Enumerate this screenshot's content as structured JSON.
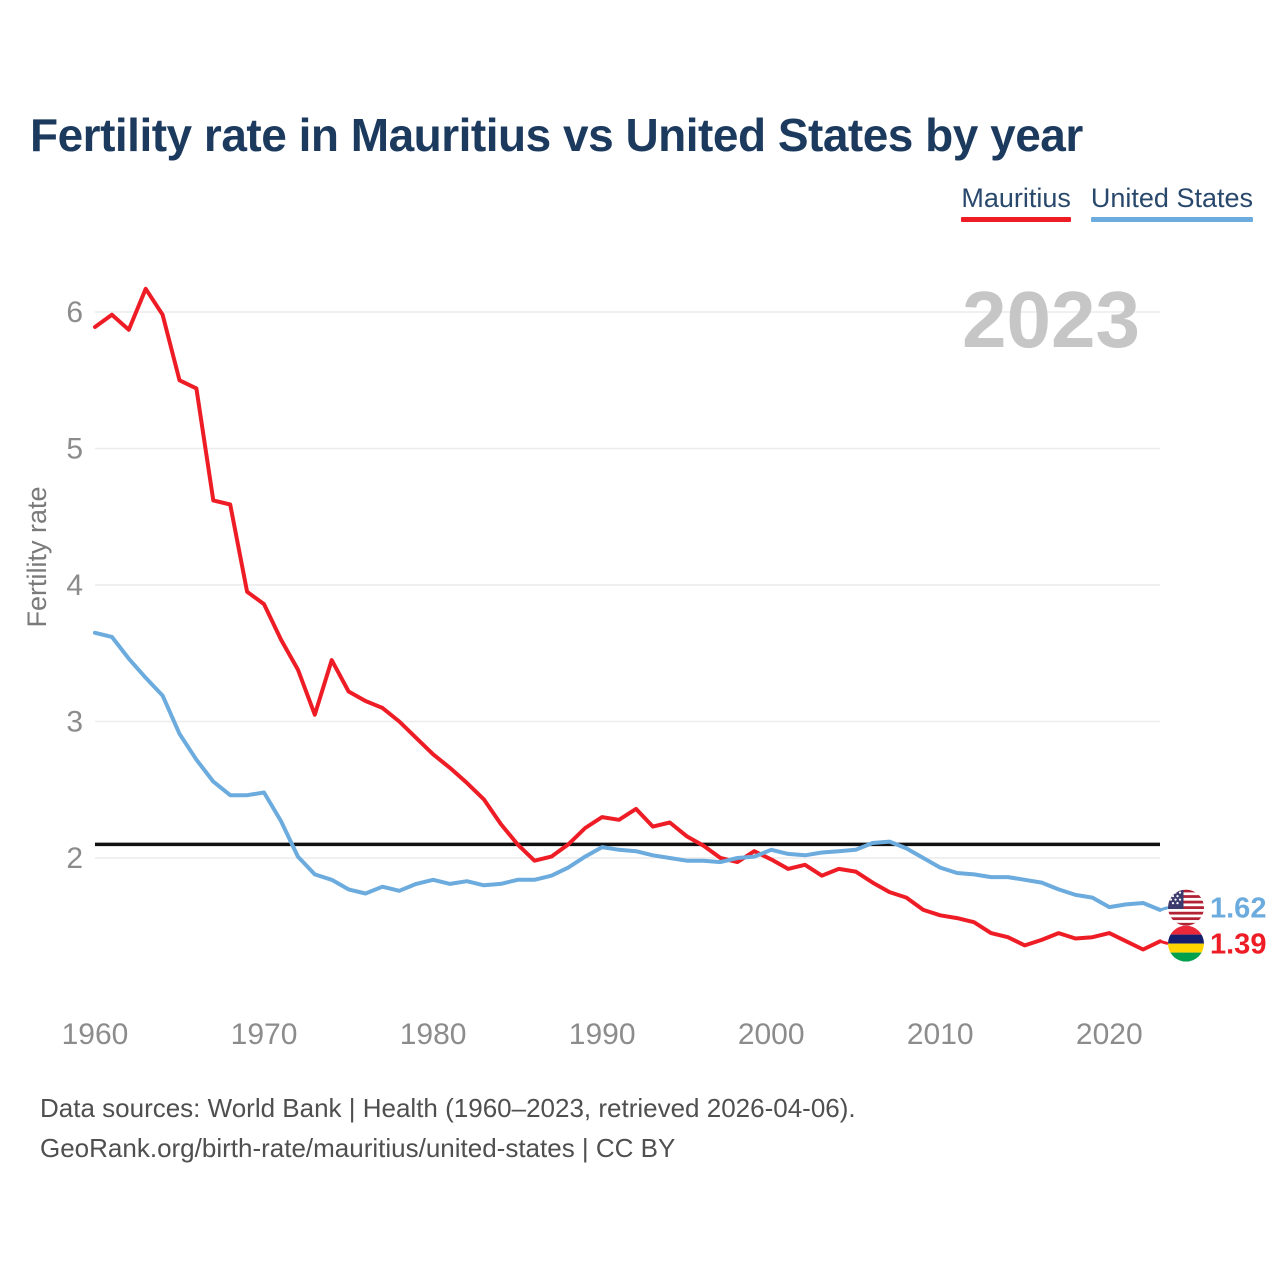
{
  "header": {
    "title": "Fertility rate in Mauritius vs United States by year"
  },
  "legend": [
    {
      "label": "Mauritius",
      "color": "#ee1c25"
    },
    {
      "label": "United States",
      "color": "#6cabdd"
    }
  ],
  "year_badge": "2023",
  "chart_data": {
    "type": "line",
    "title": "Fertility rate in Mauritius vs United States by year",
    "xlabel": "",
    "ylabel": "Fertility rate",
    "xlim": [
      1960,
      2023
    ],
    "ylim": [
      1.25,
      6.3
    ],
    "grid": true,
    "legend_position": "top-right",
    "yticks": [
      2,
      3,
      4,
      5,
      6
    ],
    "xticks": [
      1960,
      1970,
      1980,
      1990,
      2000,
      2010,
      2020
    ],
    "reference_line": {
      "value": 2.1,
      "color": "#111111"
    },
    "x": [
      1960,
      1961,
      1962,
      1963,
      1964,
      1965,
      1966,
      1967,
      1968,
      1969,
      1970,
      1971,
      1972,
      1973,
      1974,
      1975,
      1976,
      1977,
      1978,
      1979,
      1980,
      1981,
      1982,
      1983,
      1984,
      1985,
      1986,
      1987,
      1988,
      1989,
      1990,
      1991,
      1992,
      1993,
      1994,
      1995,
      1996,
      1997,
      1998,
      1999,
      2000,
      2001,
      2002,
      2003,
      2004,
      2005,
      2006,
      2007,
      2008,
      2009,
      2010,
      2011,
      2012,
      2013,
      2014,
      2015,
      2016,
      2017,
      2018,
      2019,
      2020,
      2021,
      2022,
      2023
    ],
    "series": [
      {
        "name": "Mauritius",
        "slug": "mauritius",
        "color": "#ee1c25",
        "end_label": "1.39",
        "flag": "mauritius",
        "values": [
          5.89,
          5.98,
          5.87,
          6.17,
          5.98,
          5.5,
          5.44,
          4.62,
          4.59,
          3.95,
          3.86,
          3.6,
          3.38,
          3.05,
          3.45,
          3.22,
          3.15,
          3.1,
          3.0,
          2.88,
          2.76,
          2.66,
          2.55,
          2.43,
          2.25,
          2.1,
          1.98,
          2.01,
          2.1,
          2.22,
          2.3,
          2.28,
          2.36,
          2.23,
          2.26,
          2.16,
          2.09,
          2.0,
          1.97,
          2.05,
          1.99,
          1.92,
          1.95,
          1.87,
          1.92,
          1.9,
          1.82,
          1.75,
          1.71,
          1.62,
          1.58,
          1.56,
          1.53,
          1.45,
          1.42,
          1.36,
          1.4,
          1.45,
          1.41,
          1.42,
          1.45,
          1.39,
          1.33,
          1.39
        ]
      },
      {
        "name": "United States",
        "slug": "united-states",
        "color": "#6cabdd",
        "end_label": "1.62",
        "flag": "united-states",
        "values": [
          3.65,
          3.62,
          3.46,
          3.32,
          3.19,
          2.91,
          2.72,
          2.56,
          2.46,
          2.46,
          2.48,
          2.27,
          2.01,
          1.88,
          1.84,
          1.77,
          1.74,
          1.79,
          1.76,
          1.81,
          1.84,
          1.81,
          1.83,
          1.8,
          1.81,
          1.84,
          1.84,
          1.87,
          1.93,
          2.01,
          2.08,
          2.06,
          2.05,
          2.02,
          2.0,
          1.98,
          1.98,
          1.97,
          2.0,
          2.01,
          2.06,
          2.03,
          2.02,
          2.04,
          2.05,
          2.06,
          2.11,
          2.12,
          2.07,
          2.0,
          1.93,
          1.89,
          1.88,
          1.86,
          1.86,
          1.84,
          1.82,
          1.77,
          1.73,
          1.71,
          1.64,
          1.66,
          1.67,
          1.62
        ]
      }
    ]
  },
  "footer": {
    "line1": "Data sources: World Bank | Health (1960–2023, retrieved 2026-04-06).",
    "line2": "GeoRank.org/birth-rate/mauritius/united-states | CC BY"
  }
}
